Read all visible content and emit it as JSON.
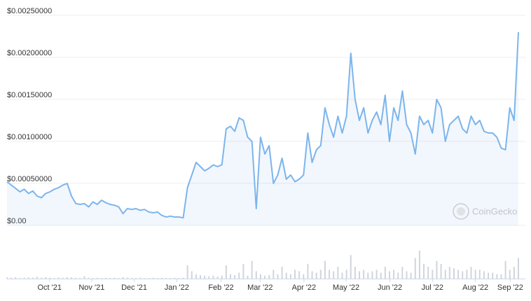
{
  "chart_data": {
    "type": "line",
    "watermark": "CoinGecko",
    "series": [
      {
        "color": "#7cb5ec",
        "values": [
          0.00052,
          0.00048,
          0.00044,
          0.0004,
          0.00043,
          0.00038,
          0.00041,
          0.00035,
          0.00033,
          0.00038,
          0.0004,
          0.00043,
          0.00045,
          0.00048,
          0.0005,
          0.00035,
          0.00026,
          0.00025,
          0.00026,
          0.00022,
          0.00028,
          0.00025,
          0.0003,
          0.00027,
          0.00025,
          0.00024,
          0.00022,
          0.00014,
          0.0002,
          0.00019,
          0.0002,
          0.00018,
          0.00019,
          0.00016,
          0.00015,
          0.00016,
          0.00012,
          0.0001,
          0.00011,
          0.0001,
          0.0001,
          9e-05,
          0.00045,
          0.0006,
          0.00075,
          0.0007,
          0.00065,
          0.00068,
          0.00072,
          0.0007,
          0.00072,
          0.00115,
          0.00118,
          0.00112,
          0.00128,
          0.00125,
          0.00105,
          0.001,
          0.0002,
          0.00105,
          0.00085,
          0.00095,
          0.0005,
          0.0006,
          0.0008,
          0.00055,
          0.0006,
          0.00052,
          0.00055,
          0.0006,
          0.0011,
          0.00075,
          0.0009,
          0.00095,
          0.0014,
          0.0012,
          0.00105,
          0.0013,
          0.0011,
          0.0013,
          0.00205,
          0.0015,
          0.00125,
          0.0014,
          0.0011,
          0.00125,
          0.00135,
          0.0012,
          0.00155,
          0.001,
          0.0014,
          0.00125,
          0.0016,
          0.0012,
          0.0011,
          0.00085,
          0.0013,
          0.0012,
          0.00125,
          0.0011,
          0.0015,
          0.0014,
          0.001,
          0.0012,
          0.00125,
          0.0013,
          0.00115,
          0.0011,
          0.0013,
          0.0012,
          0.00125,
          0.00112,
          0.0011,
          0.0011,
          0.00105,
          0.00092,
          0.0009,
          0.0014,
          0.00125,
          0.0023
        ]
      }
    ],
    "volume": {
      "color": "#d0d5dc",
      "values": [
        0.4,
        0.3,
        0.5,
        0.2,
        0.3,
        0.4,
        0.3,
        0.6,
        0.3,
        0.5,
        0.3,
        0.2,
        0.4,
        0.3,
        0.5,
        0.4,
        0.3,
        0.2,
        0.8,
        0.3,
        0.2,
        0.3,
        0.2,
        0.3,
        0.2,
        0.3,
        0.2,
        0.5,
        0.3,
        0.2,
        0.2,
        0.3,
        0.2,
        0.2,
        0.3,
        0.2,
        0.3,
        0.2,
        0.2,
        0.3,
        0.2,
        0.3,
        4.5,
        2.5,
        1.5,
        1.2,
        1,
        0.8,
        1,
        0.7,
        1,
        4.5,
        1.5,
        1.2,
        2,
        5,
        1,
        6,
        2.5,
        1.5,
        1,
        1.2,
        3,
        1.5,
        4,
        2,
        1.5,
        3,
        2.5,
        1.5,
        5,
        2.5,
        2,
        3,
        6,
        3,
        2.5,
        4,
        2,
        3,
        8,
        4,
        2.5,
        3,
        2,
        2.5,
        3,
        2,
        4,
        2.5,
        3,
        2,
        4,
        2.5,
        2,
        7,
        9.5,
        5,
        4,
        3,
        6,
        5,
        3,
        4,
        3.5,
        3,
        2.5,
        3,
        4,
        3,
        3,
        2.5,
        2,
        2,
        1.5,
        1.5,
        6,
        3,
        4,
        7
      ]
    },
    "ylim": [
      0,
      0.0025
    ],
    "yticks": [
      {
        "value": 0,
        "label": "$0.00"
      },
      {
        "value": 0.0005,
        "label": "$0.00050000"
      },
      {
        "value": 0.001,
        "label": "$0.00100000"
      },
      {
        "value": 0.0015,
        "label": "$0.00150000"
      },
      {
        "value": 0.002,
        "label": "$0.00200000"
      },
      {
        "value": 0.0025,
        "label": "$0.00250000"
      }
    ],
    "xlim": [
      0,
      119
    ],
    "xticks": [
      {
        "value": 9.9,
        "label": "Oct '21"
      },
      {
        "value": 19.7,
        "label": "Nov '21"
      },
      {
        "value": 29.6,
        "label": "Dec '21"
      },
      {
        "value": 39.5,
        "label": "Jan '22"
      },
      {
        "value": 49.8,
        "label": "Feb '22"
      },
      {
        "value": 58.9,
        "label": "Mar '22"
      },
      {
        "value": 69.1,
        "label": "Apr '22"
      },
      {
        "value": 78.9,
        "label": "May '22"
      },
      {
        "value": 89.1,
        "label": "Jun '22"
      },
      {
        "value": 99,
        "label": "Jul '22"
      },
      {
        "value": 109,
        "label": "Aug '22"
      },
      {
        "value": 117.1,
        "label": "Sep '22"
      }
    ],
    "grid": true
  }
}
